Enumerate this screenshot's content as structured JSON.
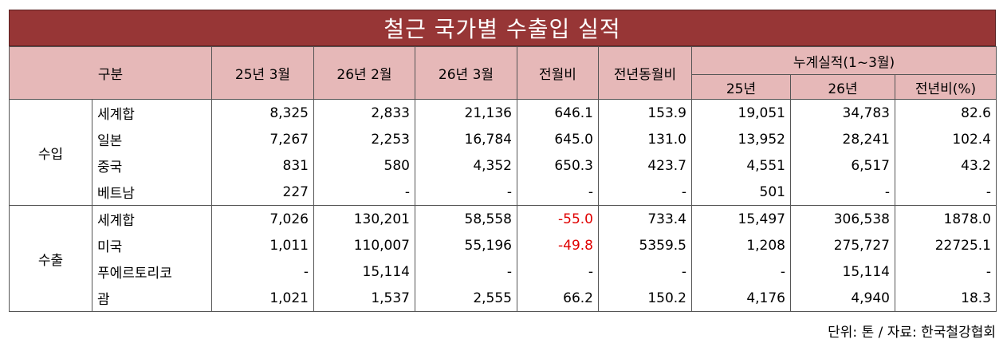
{
  "title": "철근 국가별 수출입 실적",
  "header": {
    "category": "구분",
    "col1": "25년 3월",
    "col2": "26년 2월",
    "col3": "26년 3월",
    "col4": "전월비",
    "col5": "전년동월비",
    "cumulative": "누계실적(1~3월)",
    "cum1": "25년",
    "cum2": "26년",
    "cum3": "전년비(%)"
  },
  "groups": [
    {
      "name": "수입",
      "rows": [
        {
          "sub": "세계합",
          "v": [
            "8,325",
            "2,833",
            "21,136",
            "646.1",
            "153.9",
            "19,051",
            "34,783",
            "82.6"
          ]
        },
        {
          "sub": "일본",
          "v": [
            "7,267",
            "2,253",
            "16,784",
            "645.0",
            "131.0",
            "13,952",
            "28,241",
            "102.4"
          ]
        },
        {
          "sub": "중국",
          "v": [
            "831",
            "580",
            "4,352",
            "650.3",
            "423.7",
            "4,551",
            "6,517",
            "43.2"
          ]
        },
        {
          "sub": "베트남",
          "v": [
            "227",
            "-",
            "-",
            "-",
            "-",
            "501",
            "-",
            "-"
          ]
        }
      ]
    },
    {
      "name": "수출",
      "rows": [
        {
          "sub": "세계합",
          "v": [
            "7,026",
            "130,201",
            "58,558",
            "-55.0",
            "733.4",
            "15,497",
            "306,538",
            "1878.0"
          ]
        },
        {
          "sub": "미국",
          "v": [
            "1,011",
            "110,007",
            "55,196",
            "-49.8",
            "5359.5",
            "1,208",
            "275,727",
            "22725.1"
          ]
        },
        {
          "sub": "푸에르토리코",
          "v": [
            "-",
            "15,114",
            "-",
            "-",
            "-",
            "-",
            "15,114",
            "-"
          ]
        },
        {
          "sub": "괌",
          "v": [
            "1,021",
            "1,537",
            "2,555",
            "66.2",
            "150.2",
            "4,176",
            "4,940",
            "18.3"
          ]
        }
      ]
    }
  ],
  "footer": "단위: 톤 / 자료: 한국철강협회"
}
